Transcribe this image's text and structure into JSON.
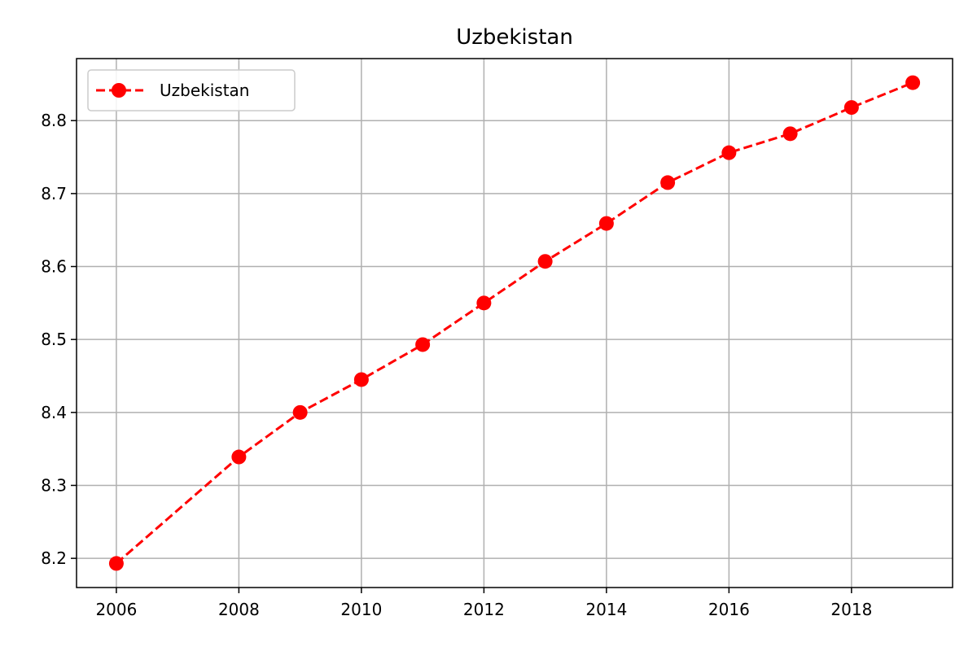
{
  "chart_data": {
    "type": "line",
    "title": "Uzbekistan",
    "xlabel": "",
    "ylabel": "",
    "xlim": [
      2005.35,
      2019.65
    ],
    "ylim": [
      8.16,
      8.885
    ],
    "x_ticks": [
      2006,
      2008,
      2010,
      2012,
      2014,
      2016,
      2018
    ],
    "y_ticks": [
      8.2,
      8.3,
      8.4,
      8.5,
      8.6,
      8.7,
      8.8
    ],
    "grid": true,
    "legend": "top-left",
    "series": [
      {
        "name": "Uzbekistan",
        "color": "#ff0000",
        "line_style": "dashed",
        "marker": "circle",
        "x": [
          2006,
          2008,
          2009,
          2010,
          2011,
          2012,
          2013,
          2014,
          2015,
          2016,
          2017,
          2018,
          2019
        ],
        "y": [
          8.193,
          8.339,
          8.4,
          8.445,
          8.493,
          8.55,
          8.607,
          8.659,
          8.715,
          8.756,
          8.782,
          8.818,
          8.852
        ]
      }
    ]
  }
}
